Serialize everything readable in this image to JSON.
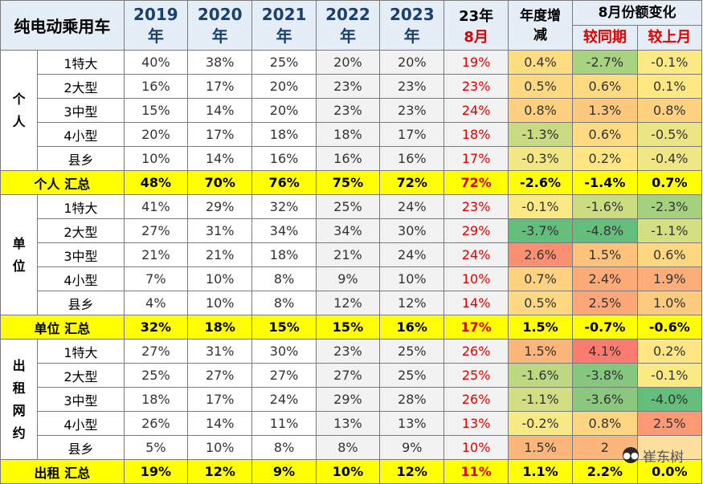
{
  "header": {
    "title": "纯电动乘用车",
    "years": [
      {
        "y": "2019",
        "s": "年"
      },
      {
        "y": "2020",
        "s": "年"
      },
      {
        "y": "2021",
        "s": "年"
      },
      {
        "y": "2022",
        "s": "年"
      },
      {
        "y": "2023",
        "s": "年"
      }
    ],
    "latest_year": "23年",
    "latest_month": "8月",
    "annual_change": "年度增减",
    "aug_change": "8月份额变化",
    "vs_yoy": "较同期",
    "vs_prev": "较上月"
  },
  "groups": [
    {
      "name": "个人",
      "rows": [
        {
          "seg": "1特大",
          "v": [
            "40%",
            "38%",
            "25%",
            "20%",
            "20%",
            "19%"
          ],
          "annual": "0.4%",
          "yoy": "-2.7%",
          "mom": "-0.1%"
        },
        {
          "seg": "2大型",
          "v": [
            "16%",
            "17%",
            "20%",
            "23%",
            "23%",
            "23%"
          ],
          "annual": "0.5%",
          "yoy": "0.6%",
          "mom": "0.1%"
        },
        {
          "seg": "3中型",
          "v": [
            "15%",
            "14%",
            "20%",
            "23%",
            "23%",
            "24%"
          ],
          "annual": "0.8%",
          "yoy": "1.3%",
          "mom": "0.8%"
        },
        {
          "seg": "4小型",
          "v": [
            "20%",
            "17%",
            "18%",
            "18%",
            "17%",
            "18%"
          ],
          "annual": "-1.3%",
          "yoy": "0.6%",
          "mom": "-0.5%"
        },
        {
          "seg": "县乡",
          "v": [
            "10%",
            "14%",
            "16%",
            "16%",
            "16%",
            "17%"
          ],
          "annual": "-0.3%",
          "yoy": "0.2%",
          "mom": "-0.4%"
        }
      ],
      "summary": {
        "label": "个人 汇总",
        "v": [
          "48%",
          "70%",
          "76%",
          "75%",
          "72%",
          "72%"
        ],
        "annual": "-2.6%",
        "yoy": "-1.4%",
        "mom": "0.7%"
      }
    },
    {
      "name": "单位",
      "rows": [
        {
          "seg": "1特大",
          "v": [
            "41%",
            "29%",
            "32%",
            "25%",
            "24%",
            "23%"
          ],
          "annual": "-0.1%",
          "yoy": "-1.6%",
          "mom": "-2.3%"
        },
        {
          "seg": "2大型",
          "v": [
            "27%",
            "31%",
            "34%",
            "34%",
            "30%",
            "29%"
          ],
          "annual": "-3.7%",
          "yoy": "-4.8%",
          "mom": "-1.1%"
        },
        {
          "seg": "3中型",
          "v": [
            "21%",
            "21%",
            "18%",
            "21%",
            "24%",
            "24%"
          ],
          "annual": "2.6%",
          "yoy": "1.5%",
          "mom": "0.6%"
        },
        {
          "seg": "4小型",
          "v": [
            "7%",
            "10%",
            "8%",
            "9%",
            "10%",
            "10%"
          ],
          "annual": "0.7%",
          "yoy": "2.4%",
          "mom": "1.9%"
        },
        {
          "seg": "县乡",
          "v": [
            "4%",
            "10%",
            "8%",
            "12%",
            "12%",
            "14%"
          ],
          "annual": "0.5%",
          "yoy": "2.5%",
          "mom": "1.0%"
        }
      ],
      "summary": {
        "label": "单位 汇总",
        "v": [
          "32%",
          "18%",
          "15%",
          "15%",
          "16%",
          "17%"
        ],
        "annual": "1.5%",
        "yoy": "-0.7%",
        "mom": "-0.6%"
      }
    },
    {
      "name": "出租网约",
      "rows": [
        {
          "seg": "1特大",
          "v": [
            "27%",
            "31%",
            "30%",
            "23%",
            "25%",
            "26%"
          ],
          "annual": "1.5%",
          "yoy": "4.1%",
          "mom": "0.2%"
        },
        {
          "seg": "2大型",
          "v": [
            "25%",
            "27%",
            "27%",
            "27%",
            "25%",
            "25%"
          ],
          "annual": "-1.6%",
          "yoy": "-3.8%",
          "mom": "-0.1%"
        },
        {
          "seg": "3中型",
          "v": [
            "18%",
            "17%",
            "24%",
            "29%",
            "28%",
            "26%"
          ],
          "annual": "-1.1%",
          "yoy": "-3.6%",
          "mom": "-4.0%"
        },
        {
          "seg": "4小型",
          "v": [
            "26%",
            "14%",
            "11%",
            "13%",
            "13%",
            "13%"
          ],
          "annual": "-0.2%",
          "yoy": "0.8%",
          "mom": "2.5%"
        },
        {
          "seg": "县乡",
          "v": [
            "5%",
            "10%",
            "8%",
            "8%",
            "9%",
            "10%"
          ],
          "annual": "1.5%",
          "yoy": "2",
          "mom": ""
        }
      ],
      "summary": {
        "label": "出租 汇总",
        "v": [
          "19%",
          "12%",
          "9%",
          "10%",
          "12%",
          "11%"
        ],
        "annual": "1.1%",
        "yoy": "2.2%",
        "mom": "0.0%"
      }
    }
  ],
  "watermark": {
    "text": "崔东树",
    "icon": "wechat-icon"
  },
  "colors": {
    "header_bg": "#e5edf6",
    "summary_bg": "#ffff00",
    "accent_red": "#e00000",
    "neg_green": "#63be7b",
    "pos_red": "#f8696b",
    "mid_yellow": "#ffeb84"
  }
}
